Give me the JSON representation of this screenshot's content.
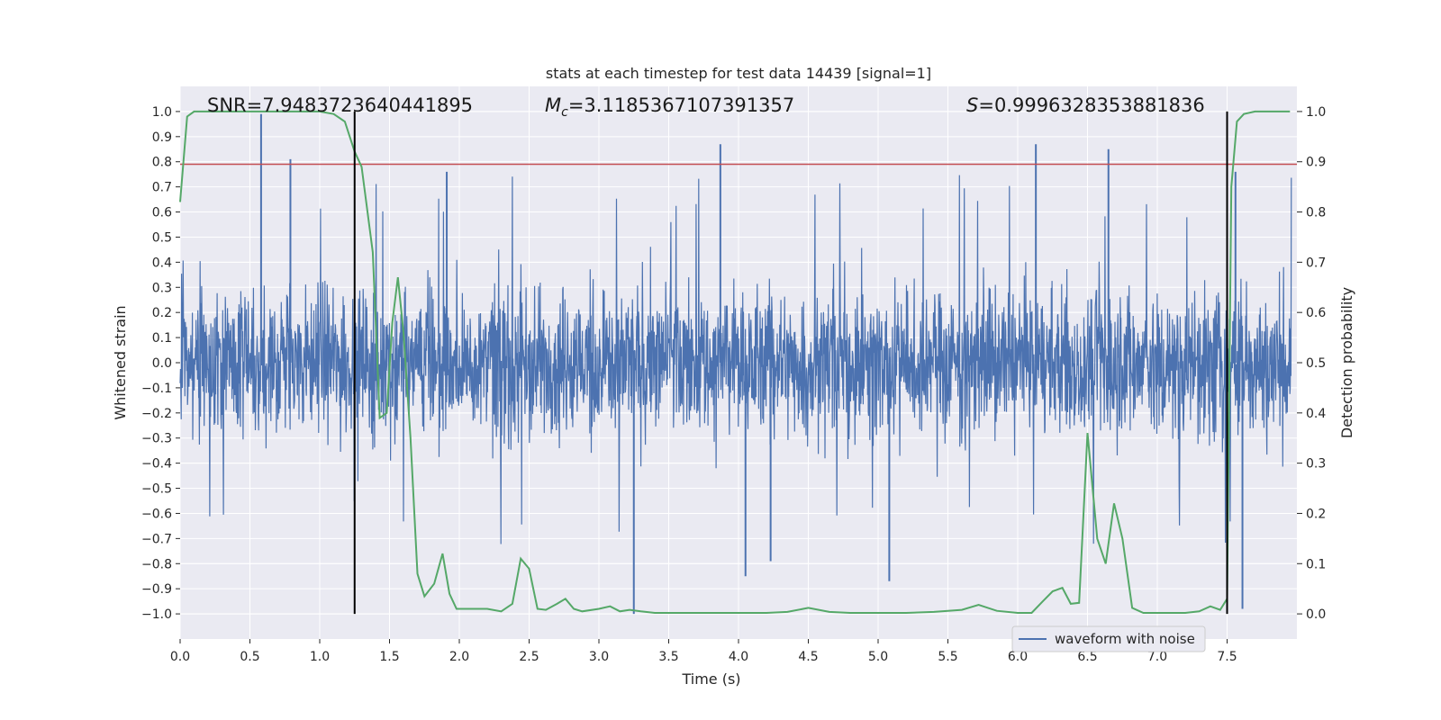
{
  "chart_data": {
    "type": "line",
    "title": "stats at each timestep for test data 14439 [signal=1]",
    "xlabel": "Time (s)",
    "ylabel": "Whitened strain",
    "y2label": "Detection probability",
    "xlim": [
      0.0,
      8.0
    ],
    "ylim": [
      -1.1,
      1.1
    ],
    "y2lim": [
      -0.05,
      1.05
    ],
    "x_ticks": [
      "0.0",
      "0.5",
      "1.0",
      "1.5",
      "2.0",
      "2.5",
      "3.0",
      "3.5",
      "4.0",
      "4.5",
      "5.0",
      "5.5",
      "6.0",
      "6.5",
      "7.0",
      "7.5"
    ],
    "x_tick_values": [
      0.0,
      0.5,
      1.0,
      1.5,
      2.0,
      2.5,
      3.0,
      3.5,
      4.0,
      4.5,
      5.0,
      5.5,
      6.0,
      6.5,
      7.0,
      7.5
    ],
    "y_ticks": [
      "1.0",
      "0.9",
      "0.8",
      "0.7",
      "0.6",
      "0.5",
      "0.4",
      "0.3",
      "0.2",
      "0.1",
      "0.0",
      "−0.1",
      "−0.2",
      "−0.3",
      "−0.4",
      "−0.5",
      "−0.6",
      "−0.7",
      "−0.8",
      "−0.9",
      "−1.0"
    ],
    "y_tick_values": [
      1.0,
      0.9,
      0.8,
      0.7,
      0.6,
      0.5,
      0.4,
      0.3,
      0.2,
      0.1,
      0.0,
      -0.1,
      -0.2,
      -0.3,
      -0.4,
      -0.5,
      -0.6,
      -0.7,
      -0.8,
      -0.9,
      -1.0
    ],
    "y2_ticks": [
      "1.0",
      "0.9",
      "0.8",
      "0.7",
      "0.6",
      "0.5",
      "0.4",
      "0.3",
      "0.2",
      "0.1",
      "0.0"
    ],
    "y2_tick_values": [
      1.0,
      0.9,
      0.8,
      0.7,
      0.6,
      0.5,
      0.4,
      0.3,
      0.2,
      0.1,
      0.0
    ],
    "annotations": {
      "snr": "SNR=7.9483723640441895",
      "mc_symbol": "M",
      "mc_sub": "c",
      "mc_value": "=3.1185367107391357",
      "s_symbol": "S",
      "s_value": "=0.9996328353881836"
    },
    "threshold_y": 0.79,
    "vlines_x": [
      1.25,
      7.5
    ],
    "legend": {
      "label": "waveform with noise",
      "placement": "lower-right"
    },
    "series": [
      {
        "name": "waveform with noise",
        "color": "#4c72b0",
        "envelope_typical": 0.45,
        "spikes": [
          {
            "x": 0.58,
            "y": 0.99
          },
          {
            "x": 0.79,
            "y": 0.81
          },
          {
            "x": 1.91,
            "y": 0.76
          },
          {
            "x": 3.87,
            "y": 0.87
          },
          {
            "x": 6.13,
            "y": 0.87
          },
          {
            "x": 6.65,
            "y": 0.85
          },
          {
            "x": 7.56,
            "y": 0.76
          },
          {
            "x": 3.25,
            "y": -1.0
          },
          {
            "x": 7.61,
            "y": -0.98
          },
          {
            "x": 5.08,
            "y": -0.87
          },
          {
            "x": 4.05,
            "y": -0.85
          },
          {
            "x": 4.23,
            "y": -0.79
          }
        ]
      },
      {
        "name": "detection probability",
        "color": "#55a868",
        "axis": "y2",
        "x": [
          0.0,
          0.05,
          0.1,
          0.2,
          0.4,
          0.6,
          0.8,
          1.0,
          1.1,
          1.18,
          1.25,
          1.3,
          1.38,
          1.43,
          1.48,
          1.52,
          1.56,
          1.6,
          1.65,
          1.7,
          1.75,
          1.82,
          1.88,
          1.93,
          1.98,
          2.05,
          2.2,
          2.3,
          2.38,
          2.44,
          2.5,
          2.56,
          2.62,
          2.7,
          2.76,
          2.82,
          2.88,
          3.0,
          3.08,
          3.15,
          3.22,
          3.3,
          3.4,
          3.6,
          3.8,
          4.0,
          4.2,
          4.35,
          4.5,
          4.65,
          4.8,
          5.0,
          5.2,
          5.4,
          5.6,
          5.72,
          5.85,
          6.0,
          6.1,
          6.18,
          6.25,
          6.32,
          6.38,
          6.44,
          6.5,
          6.57,
          6.63,
          6.69,
          6.75,
          6.82,
          6.9,
          7.0,
          7.1,
          7.2,
          7.3,
          7.38,
          7.45,
          7.5,
          7.53,
          7.57,
          7.62,
          7.7,
          7.85,
          7.95
        ],
        "y": [
          0.82,
          0.99,
          1.0,
          1.0,
          1.0,
          1.0,
          1.0,
          1.0,
          0.995,
          0.98,
          0.92,
          0.89,
          0.72,
          0.39,
          0.4,
          0.58,
          0.67,
          0.56,
          0.35,
          0.08,
          0.035,
          0.06,
          0.12,
          0.04,
          0.01,
          0.01,
          0.01,
          0.005,
          0.02,
          0.11,
          0.09,
          0.01,
          0.008,
          0.02,
          0.03,
          0.01,
          0.005,
          0.01,
          0.015,
          0.005,
          0.008,
          0.005,
          0.002,
          0.002,
          0.002,
          0.002,
          0.002,
          0.004,
          0.012,
          0.004,
          0.002,
          0.002,
          0.002,
          0.004,
          0.008,
          0.018,
          0.006,
          0.002,
          0.002,
          0.025,
          0.045,
          0.052,
          0.02,
          0.022,
          0.36,
          0.15,
          0.1,
          0.22,
          0.15,
          0.012,
          0.002,
          0.002,
          0.002,
          0.002,
          0.005,
          0.015,
          0.008,
          0.03,
          0.85,
          0.98,
          0.995,
          1.0,
          1.0,
          1.0
        ]
      }
    ]
  },
  "style": {
    "plot_bg": "#eaeaf2",
    "grid": "#ffffff",
    "threshold_color": "#c44e52",
    "vline_color": "#000000"
  }
}
